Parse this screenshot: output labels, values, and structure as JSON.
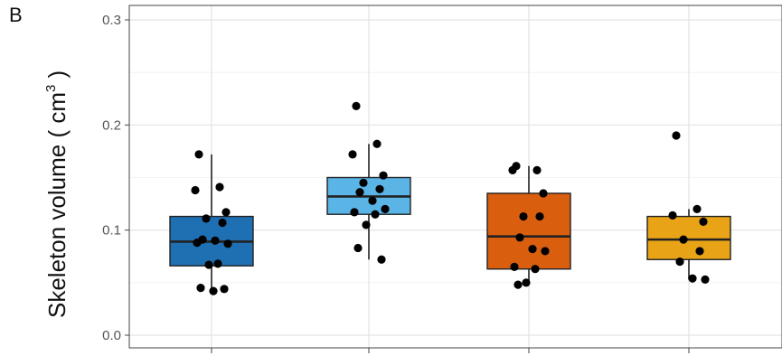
{
  "panel_label": "B",
  "chart_data": {
    "type": "box",
    "ylabel": "Skeleton volume ( cm",
    "ylabel_superscript": "3",
    "ylabel_close": " )",
    "xlabel": "",
    "ylim": [
      -0.01,
      0.31
    ],
    "yticks": [
      0.0,
      0.1,
      0.2,
      0.3
    ],
    "ytick_labels": [
      "0.0",
      "0.1",
      "0.2",
      "0.3"
    ],
    "grid": true,
    "groups": [
      {
        "color": "#1f6fb3",
        "whisker_low": 0.043,
        "q1": 0.066,
        "median": 0.089,
        "q3": 0.113,
        "whisker_high": 0.172,
        "points": [
          0.172,
          0.141,
          0.138,
          0.117,
          0.111,
          0.107,
          0.091,
          0.09,
          0.087,
          0.088,
          0.068,
          0.067,
          0.045,
          0.044,
          0.042
        ]
      },
      {
        "color": "#5ab4e6",
        "whisker_low": 0.072,
        "q1": 0.115,
        "median": 0.132,
        "q3": 0.15,
        "whisker_high": 0.182,
        "points": [
          0.218,
          0.182,
          0.172,
          0.152,
          0.145,
          0.139,
          0.136,
          0.128,
          0.12,
          0.117,
          0.115,
          0.105,
          0.083,
          0.072
        ]
      },
      {
        "color": "#d95f0e",
        "whisker_low": 0.049,
        "q1": 0.063,
        "median": 0.094,
        "q3": 0.135,
        "whisker_high": 0.161,
        "points": [
          0.161,
          0.157,
          0.157,
          0.135,
          0.113,
          0.113,
          0.093,
          0.082,
          0.08,
          0.065,
          0.063,
          0.05,
          0.048
        ]
      },
      {
        "color": "#e8a317",
        "whisker_low": 0.053,
        "q1": 0.072,
        "median": 0.091,
        "q3": 0.113,
        "whisker_high": 0.12,
        "points": [
          0.19,
          0.12,
          0.114,
          0.108,
          0.091,
          0.08,
          0.07,
          0.054,
          0.053
        ]
      }
    ]
  }
}
